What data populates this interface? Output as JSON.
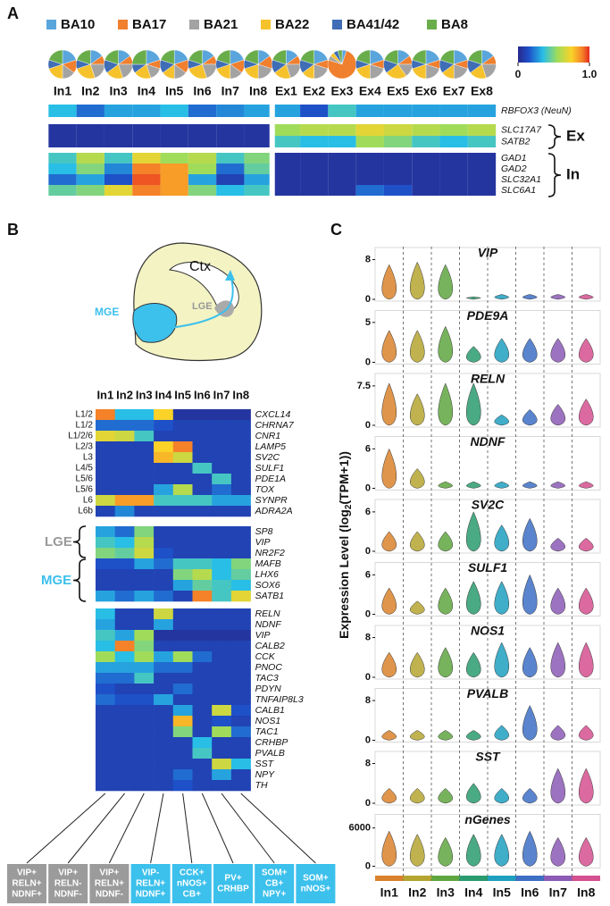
{
  "panel_a": {
    "label": "A",
    "legend": [
      {
        "name": "BA10",
        "color": "#5aa5dc"
      },
      {
        "name": "BA17",
        "color": "#f07f2e"
      },
      {
        "name": "BA21",
        "color": "#a3a3a3"
      },
      {
        "name": "BA22",
        "color": "#f6c22c"
      },
      {
        "name": "BA41/42",
        "color": "#3f6db6"
      },
      {
        "name": "BA8",
        "color": "#69ad4b"
      }
    ],
    "columns": [
      "In1",
      "In2",
      "In3",
      "In4",
      "In5",
      "In6",
      "In7",
      "In8",
      "Ex1",
      "Ex2",
      "Ex3",
      "Ex4",
      "Ex5",
      "Ex6",
      "Ex7",
      "Ex8"
    ],
    "pies": [
      [
        20,
        15,
        15,
        20,
        10,
        20
      ],
      [
        15,
        10,
        20,
        25,
        10,
        20
      ],
      [
        15,
        10,
        20,
        20,
        15,
        20
      ],
      [
        20,
        10,
        15,
        20,
        10,
        25
      ],
      [
        20,
        15,
        15,
        15,
        15,
        20
      ],
      [
        15,
        10,
        20,
        25,
        10,
        20
      ],
      [
        20,
        15,
        15,
        20,
        10,
        20
      ],
      [
        15,
        15,
        20,
        20,
        10,
        20
      ],
      [
        15,
        10,
        20,
        20,
        15,
        20
      ],
      [
        20,
        10,
        20,
        15,
        15,
        20
      ],
      [
        5,
        75,
        5,
        5,
        5,
        5
      ],
      [
        20,
        10,
        20,
        20,
        10,
        20
      ],
      [
        15,
        10,
        15,
        25,
        15,
        20
      ],
      [
        20,
        10,
        20,
        20,
        10,
        20
      ],
      [
        20,
        10,
        20,
        15,
        15,
        20
      ],
      [
        15,
        10,
        20,
        20,
        15,
        20
      ]
    ],
    "colorbar": {
      "ticks": [
        0,
        {
          "value": 1,
          "label": "1.0"
        }
      ]
    },
    "rows": [
      {
        "gene": "RBFOX3 (NeuN)",
        "values": [
          0.35,
          0.2,
          0.3,
          0.3,
          0.35,
          0.2,
          0.25,
          0.3,
          0.3,
          0.15,
          0.4,
          0.3,
          0.3,
          0.3,
          0.3,
          0.3
        ]
      },
      {
        "gene": "SLC17A7",
        "values": [
          0.05,
          0.05,
          0.05,
          0.05,
          0.05,
          0.05,
          0.05,
          0.05,
          0.55,
          0.6,
          0.6,
          0.7,
          0.65,
          0.6,
          0.55,
          0.6
        ]
      },
      {
        "gene": "SATB2",
        "values": [
          0.05,
          0.05,
          0.05,
          0.05,
          0.05,
          0.05,
          0.05,
          0.05,
          0.4,
          0.35,
          0.35,
          0.55,
          0.5,
          0.4,
          0.35,
          0.4
        ]
      },
      {
        "gene": "GAD1",
        "values": [
          0.4,
          0.6,
          0.4,
          0.7,
          0.55,
          0.6,
          0.4,
          0.5,
          0.05,
          0.05,
          0.05,
          0.05,
          0.05,
          0.05,
          0.05,
          0.05
        ]
      },
      {
        "gene": "GAD2",
        "values": [
          0.35,
          0.5,
          0.25,
          0.9,
          0.85,
          0.55,
          0.2,
          0.45,
          0.05,
          0.05,
          0.05,
          0.05,
          0.05,
          0.05,
          0.05,
          0.05
        ]
      },
      {
        "gene": "SLC32A1",
        "values": [
          0.2,
          0.3,
          0.15,
          0.95,
          0.85,
          0.3,
          0.1,
          0.3,
          0.05,
          0.05,
          0.05,
          0.05,
          0.05,
          0.05,
          0.05,
          0.05
        ]
      },
      {
        "gene": "SLC6A1",
        "values": [
          0.45,
          0.5,
          0.7,
          0.9,
          0.85,
          0.5,
          0.35,
          0.4,
          0.05,
          0.05,
          0.05,
          0.2,
          0.15,
          0.05,
          0.05,
          0.05
        ]
      }
    ],
    "groups": [
      "Ex",
      "In"
    ]
  },
  "panel_b": {
    "label": "B",
    "diagram": {
      "ctx": "Ctx",
      "lge": "LGE",
      "mge": "MGE"
    },
    "columns": [
      "In1",
      "In2",
      "In3",
      "In4",
      "In5",
      "In6",
      "In7",
      "In8"
    ],
    "blocks": [
      [
        {
          "layer": "L1/2",
          "gene": "CXCL14",
          "values": [
            0.9,
            0.35,
            0.35,
            0.75,
            0.05,
            0.05,
            0.05,
            0.05
          ]
        },
        {
          "layer": "L1/2",
          "gene": "CHRNA7",
          "values": [
            0.2,
            0.2,
            0.2,
            0.15,
            0.1,
            0.1,
            0.1,
            0.1
          ]
        },
        {
          "layer": "L1/2/6",
          "gene": "CNR1",
          "values": [
            0.7,
            0.65,
            0.4,
            0.1,
            0.1,
            0.1,
            0.1,
            0.1
          ]
        },
        {
          "layer": "L2/3",
          "gene": "LAMP5",
          "values": [
            0.1,
            0.1,
            0.1,
            0.75,
            0.9,
            0.1,
            0.1,
            0.1
          ]
        },
        {
          "layer": "L3",
          "gene": "SV2C",
          "values": [
            0.1,
            0.1,
            0.1,
            0.8,
            0.65,
            0.1,
            0.1,
            0.1
          ]
        },
        {
          "layer": "L4/5",
          "gene": "SULF1",
          "values": [
            0.1,
            0.1,
            0.1,
            0.1,
            0.1,
            0.4,
            0.1,
            0.1
          ]
        },
        {
          "layer": "L5/6",
          "gene": "PDE1A",
          "values": [
            0.1,
            0.1,
            0.1,
            0.1,
            0.1,
            0.1,
            0.4,
            0.1
          ]
        },
        {
          "layer": "L5/6",
          "gene": "TOX",
          "values": [
            0.1,
            0.1,
            0.1,
            0.3,
            0.6,
            0.1,
            0.2,
            0.1
          ]
        },
        {
          "layer": "L6",
          "gene": "SYNPR",
          "values": [
            0.65,
            0.85,
            0.85,
            0.4,
            0.4,
            0.4,
            0.3,
            0.3
          ]
        },
        {
          "layer": "L6b",
          "gene": "ADRA2A",
          "values": [
            0.1,
            0.25,
            0.1,
            0.1,
            0.1,
            0.1,
            0.1,
            0.1
          ]
        }
      ],
      [
        {
          "gene": "SP8",
          "values": [
            0.3,
            0.2,
            0.5,
            0.1,
            0.1,
            0.1,
            0.1,
            0.1
          ]
        },
        {
          "gene": "VIP",
          "values": [
            0.4,
            0.35,
            0.6,
            0.1,
            0.1,
            0.1,
            0.1,
            0.1
          ]
        },
        {
          "gene": "NR2F2",
          "values": [
            0.5,
            0.45,
            0.65,
            0.15,
            0.1,
            0.1,
            0.1,
            0.1
          ]
        },
        {
          "gene": "MAFB",
          "values": [
            0.15,
            0.15,
            0.3,
            0.2,
            0.4,
            0.4,
            0.35,
            0.5
          ]
        },
        {
          "gene": "LHX6",
          "values": [
            0.1,
            0.1,
            0.1,
            0.1,
            0.5,
            0.6,
            0.35,
            0.45
          ]
        },
        {
          "gene": "SOX6",
          "values": [
            0.1,
            0.1,
            0.1,
            0.1,
            0.3,
            0.45,
            0.4,
            0.35
          ]
        },
        {
          "gene": "SATB1",
          "values": [
            0.3,
            0.2,
            0.3,
            0.2,
            0.1,
            0.9,
            0.4,
            0.7
          ]
        }
      ],
      [
        {
          "gene": "RELN",
          "values": [
            0.35,
            0.1,
            0.1,
            0.65,
            0.1,
            0.1,
            0.1,
            0.1
          ]
        },
        {
          "gene": "NDNF",
          "values": [
            0.3,
            0.1,
            0.1,
            0.3,
            0.1,
            0.1,
            0.1,
            0.1
          ]
        },
        {
          "gene": "VIP",
          "values": [
            0.4,
            0.3,
            0.55,
            0.05,
            0.05,
            0.05,
            0.05,
            0.05
          ]
        },
        {
          "gene": "CALB2",
          "values": [
            0.35,
            0.9,
            0.5,
            0.1,
            0.1,
            0.1,
            0.1,
            0.1
          ]
        },
        {
          "gene": "CCK",
          "values": [
            0.55,
            0.35,
            0.55,
            0.3,
            0.55,
            0.2,
            0.1,
            0.1
          ]
        },
        {
          "gene": "PNOC",
          "values": [
            0.3,
            0.3,
            0.3,
            0.2,
            0.2,
            0.1,
            0.1,
            0.1
          ]
        },
        {
          "gene": "TAC3",
          "values": [
            0.2,
            0.2,
            0.4,
            0.1,
            0.1,
            0.1,
            0.1,
            0.1
          ]
        },
        {
          "gene": "PDYN",
          "values": [
            0.15,
            0.1,
            0.1,
            0.1,
            0.2,
            0.1,
            0.1,
            0.1
          ]
        },
        {
          "gene": "TNFAIP8L3",
          "values": [
            0.2,
            0.15,
            0.15,
            0.3,
            0.1,
            0.1,
            0.1,
            0.1
          ]
        },
        {
          "gene": "CALB1",
          "values": [
            0.1,
            0.1,
            0.1,
            0.1,
            0.3,
            0.1,
            0.65,
            0.15
          ]
        },
        {
          "gene": "NOS1",
          "values": [
            0.1,
            0.1,
            0.1,
            0.1,
            0.8,
            0.1,
            0.15,
            0.1
          ]
        },
        {
          "gene": "TAC1",
          "values": [
            0.1,
            0.1,
            0.1,
            0.1,
            0.5,
            0.1,
            0.55,
            0.2
          ]
        },
        {
          "gene": "CRHBP",
          "values": [
            0.1,
            0.1,
            0.1,
            0.1,
            0.1,
            0.35,
            0.1,
            0.1
          ]
        },
        {
          "gene": "PVALB",
          "values": [
            0.1,
            0.1,
            0.1,
            0.1,
            0.1,
            0.4,
            0.1,
            0.1
          ]
        },
        {
          "gene": "SST",
          "values": [
            0.1,
            0.1,
            0.1,
            0.1,
            0.1,
            0.1,
            0.65,
            0.35
          ]
        },
        {
          "gene": "NPY",
          "values": [
            0.1,
            0.1,
            0.1,
            0.1,
            0.2,
            0.1,
            0.3,
            0.1
          ]
        },
        {
          "gene": "TH",
          "values": [
            0.1,
            0.1,
            0.1,
            0.1,
            0.15,
            0.1,
            0.1,
            0.1
          ]
        }
      ]
    ],
    "brace_labels": [
      "LGE",
      "MGE"
    ],
    "boxes": [
      [
        "VIP+",
        "RELN+",
        "NDNF+"
      ],
      [
        "VIP+",
        "RELN-",
        "NDNF-"
      ],
      [
        "VIP+",
        "RELN+",
        "NDNF-"
      ],
      [
        "VIP-",
        "RELN+",
        "NDNF+"
      ],
      [
        "CCK+",
        "nNOS+",
        "CB+"
      ],
      [
        "PV+",
        "CRHBP"
      ],
      [
        "SOM+",
        "CB+",
        "NPY+"
      ],
      [
        "SOM+",
        "nNOS+"
      ]
    ],
    "box_colors": [
      "#9b9b9b",
      "#9b9b9b",
      "#9b9b9b",
      "#3cc0ec",
      "#3cc0ec",
      "#3cc0ec",
      "#3cc0ec",
      "#3cc0ec"
    ]
  },
  "panel_c": {
    "label": "C",
    "y_label": {
      "text": "Expression Level (log",
      "sub": "2",
      "tail": "(TPM+1))"
    },
    "clusters": [
      "In1",
      "In2",
      "In3",
      "In4",
      "In5",
      "In6",
      "In7",
      "In8"
    ],
    "colors": [
      "#d9822b",
      "#b5a530",
      "#5fa640",
      "#2a9b6f",
      "#1f9fc0",
      "#3d6fc4",
      "#8b5bb5",
      "#d5508f"
    ],
    "panels": [
      {
        "gene": "VIP",
        "ylim": [
          0,
          9
        ],
        "yticks": [
          0,
          8
        ],
        "values": [
          7,
          7.5,
          7,
          0.5,
          1,
          1,
          1,
          1
        ]
      },
      {
        "gene": "PDE9A",
        "ylim": [
          0,
          5.6
        ],
        "yticks": [
          0,
          5
        ],
        "values": [
          4,
          4,
          4.5,
          2,
          3,
          3,
          3,
          3
        ]
      },
      {
        "gene": "RELN",
        "ylim": [
          0,
          8.5
        ],
        "yticks": [
          0,
          7.5
        ],
        "values": [
          8,
          6,
          8,
          8,
          2,
          3,
          4,
          5
        ]
      },
      {
        "gene": "NDNF",
        "ylim": [
          0,
          6.8
        ],
        "yticks": [
          0,
          6
        ],
        "values": [
          6,
          3,
          1,
          1,
          1,
          1,
          1,
          1
        ]
      },
      {
        "gene": "SV2C",
        "ylim": [
          0,
          6.8
        ],
        "yticks": [
          0,
          6
        ],
        "values": [
          3,
          3,
          3,
          6,
          4,
          5,
          2,
          2
        ]
      },
      {
        "gene": "SULF1",
        "ylim": [
          0,
          6.8
        ],
        "yticks": [
          0,
          6
        ],
        "values": [
          4,
          2,
          4,
          5,
          5,
          6,
          4,
          4
        ]
      },
      {
        "gene": "NOS1",
        "ylim": [
          0,
          9
        ],
        "yticks": [
          0,
          8
        ],
        "values": [
          5,
          5,
          6,
          5,
          7,
          6,
          7,
          7
        ]
      },
      {
        "gene": "PVALB",
        "ylim": [
          0,
          9
        ],
        "yticks": [
          0,
          8
        ],
        "values": [
          2,
          2,
          2,
          2,
          3,
          7,
          3,
          3
        ]
      },
      {
        "gene": "SST",
        "ylim": [
          0,
          9
        ],
        "yticks": [
          0,
          8
        ],
        "values": [
          3,
          3,
          3,
          4,
          3,
          3,
          7,
          7
        ]
      },
      {
        "gene": "nGenes",
        "ylim": [
          0,
          7000
        ],
        "yticks": [
          0,
          6000
        ],
        "values": [
          5500,
          5000,
          4500,
          5000,
          5000,
          5500,
          4500,
          4500
        ]
      }
    ]
  }
}
